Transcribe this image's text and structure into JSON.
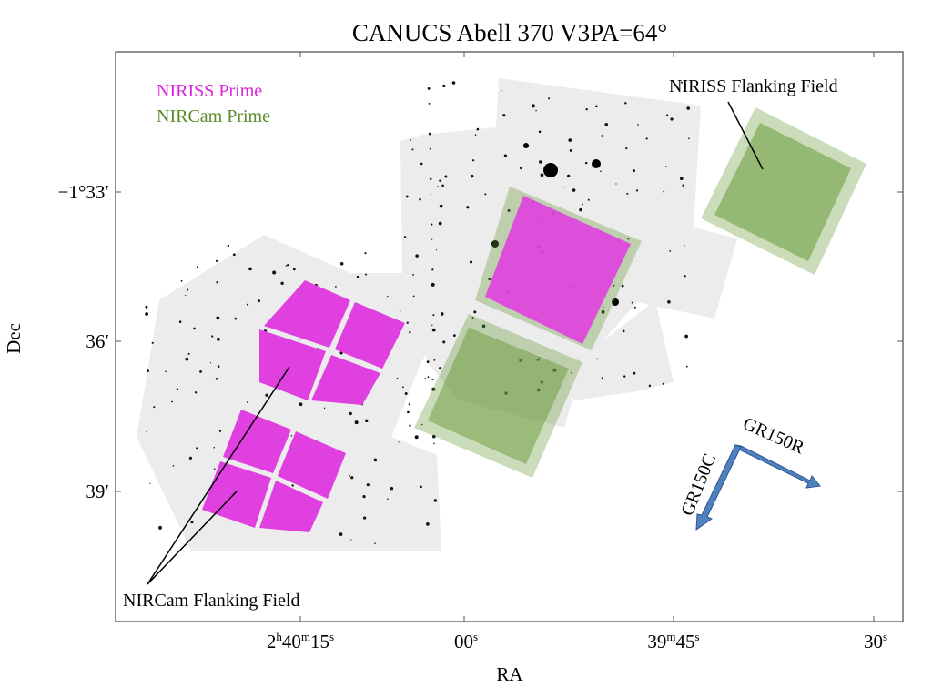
{
  "title": "CANUCS Abell 370 V3PA=64°",
  "xlabel": "RA",
  "ylabel": "Dec",
  "x_ticks": [
    {
      "main": "2",
      "sup1": "h",
      "mid": "40",
      "sup2": "m",
      "end": "15",
      "sup3": "s"
    },
    {
      "main": "",
      "sup1": "",
      "mid": "",
      "sup2": "",
      "end": "00",
      "sup3": "s"
    },
    {
      "main": "",
      "sup1": "",
      "mid": "39",
      "sup2": "m",
      "end": "45",
      "sup3": "s"
    },
    {
      "main": "",
      "sup1": "",
      "mid": "",
      "sup2": "",
      "end": "30",
      "sup3": "s"
    }
  ],
  "y_ticks": [
    "−1°33′",
    "36′",
    "39′"
  ],
  "legend": [
    {
      "label": "NIRISS Prime",
      "color": "#dd22dd"
    },
    {
      "label": "NIRCam Prime",
      "color": "#5a8a2a"
    }
  ],
  "annotations": {
    "niriss_flanking": "NIRISS Flanking Field",
    "nircam_flanking": "NIRCam Flanking Field",
    "gr150c": "GR150C",
    "gr150r": "GR150R"
  },
  "colors": {
    "niriss": "#e040e0",
    "nircam": "#6a9a3a",
    "arrow": "#4f81bd",
    "mosaic": "#ececec"
  }
}
